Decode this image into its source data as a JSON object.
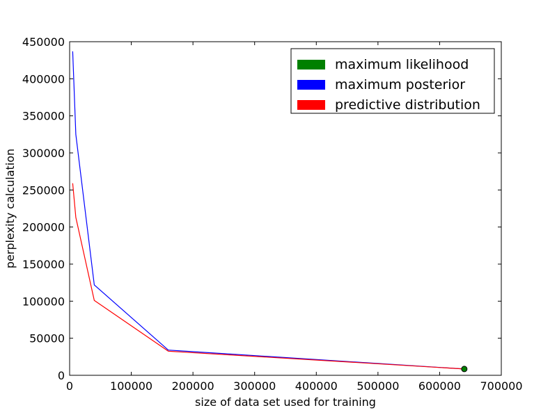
{
  "chart_data": {
    "type": "line",
    "xlabel": "size of data set used for training",
    "ylabel": "perplexity calculation",
    "xlim": [
      0,
      700000
    ],
    "ylim": [
      0,
      450000
    ],
    "xticks": [
      0,
      100000,
      200000,
      300000,
      400000,
      500000,
      600000,
      700000
    ],
    "yticks": [
      0,
      50000,
      100000,
      150000,
      200000,
      250000,
      300000,
      350000,
      400000,
      450000
    ],
    "xtick_labels": [
      "0",
      "100000",
      "200000",
      "300000",
      "400000",
      "500000",
      "600000",
      "700000"
    ],
    "ytick_labels": [
      "0",
      "50000",
      "100000",
      "150000",
      "200000",
      "250000",
      "300000",
      "350000",
      "400000",
      "450000"
    ],
    "grid": false,
    "legend_position": "top-right",
    "series": [
      {
        "name": "maximum likelihood",
        "color": "#008000",
        "style": "marker",
        "x": [
          640000
        ],
        "y": [
          8500
        ]
      },
      {
        "name": "maximum posterior",
        "color": "#0000ff",
        "style": "line",
        "x": [
          5000,
          10000,
          40000,
          160000,
          640000
        ],
        "y": [
          437000,
          325000,
          122000,
          34000,
          8500
        ]
      },
      {
        "name": "predictive distribution",
        "color": "#ff0000",
        "style": "line",
        "x": [
          5000,
          10000,
          40000,
          160000,
          640000
        ],
        "y": [
          259000,
          213000,
          101000,
          32500,
          8500
        ]
      }
    ]
  }
}
